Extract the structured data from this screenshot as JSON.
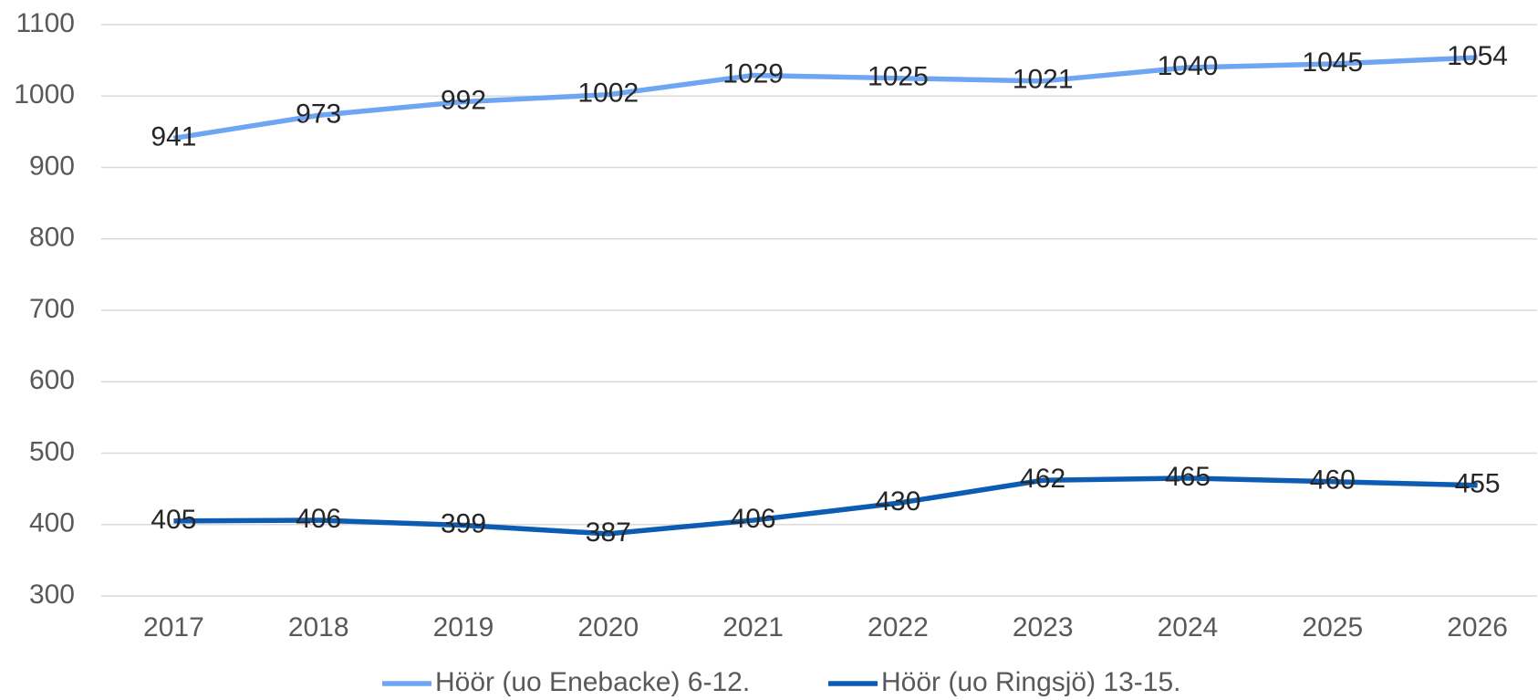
{
  "chart_data": {
    "type": "line",
    "categories": [
      "2017",
      "2018",
      "2019",
      "2020",
      "2021",
      "2022",
      "2023",
      "2024",
      "2025",
      "2026"
    ],
    "series": [
      {
        "name": "Höör (uo Enebacke) 6-12.",
        "color": "#6fa6f4",
        "values": [
          941,
          973,
          992,
          1002,
          1029,
          1025,
          1021,
          1040,
          1045,
          1054
        ]
      },
      {
        "name": "Höör (uo Ringsjö) 13-15.",
        "color": "#0b5cb2",
        "values": [
          405,
          406,
          399,
          387,
          406,
          430,
          462,
          465,
          460,
          455
        ]
      }
    ],
    "ylim": [
      300,
      1100
    ],
    "yticks": [
      300,
      400,
      500,
      600,
      700,
      800,
      900,
      1000,
      1100
    ],
    "grid": true,
    "legend": "bottom"
  }
}
